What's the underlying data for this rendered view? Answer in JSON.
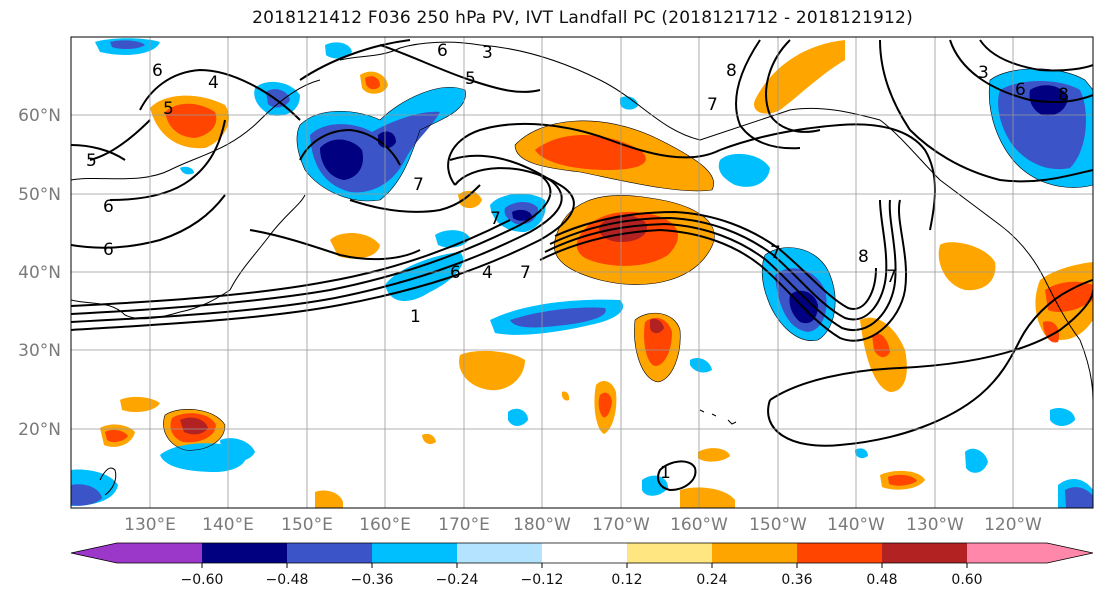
{
  "title": "2018121412 F036 250 hPa PV, IVT Landfall PC (2018121712 - 2018121912)",
  "lat_labels": [
    "60°N",
    "50°N",
    "40°N",
    "30°N",
    "20°N"
  ],
  "lon_labels": [
    "130°E",
    "140°E",
    "150°E",
    "160°E",
    "170°E",
    "180°W",
    "170°W",
    "160°W",
    "150°W",
    "140°W",
    "130°W",
    "120°W"
  ],
  "colorbar": {
    "ticks": [
      "−0.60",
      "−0.48",
      "−0.36",
      "−0.24",
      "−0.12",
      "0.12",
      "0.24",
      "0.36",
      "0.48",
      "0.60"
    ],
    "colors": [
      "#9b37c9",
      "#000080",
      "#3b55c8",
      "#00bfff",
      "#b3e3ff",
      "#ffffff",
      "#ffe680",
      "#ffa500",
      "#ff4500",
      "#b22222",
      "#ff88aa"
    ]
  },
  "contour_labels": [
    "6",
    "4",
    "3",
    "5",
    "6",
    "5",
    "7",
    "8",
    "5",
    "6",
    "6",
    "7",
    "7",
    "6",
    "4",
    "7",
    "7",
    "8",
    "7",
    "1",
    "1",
    "6",
    "8",
    "3"
  ]
}
